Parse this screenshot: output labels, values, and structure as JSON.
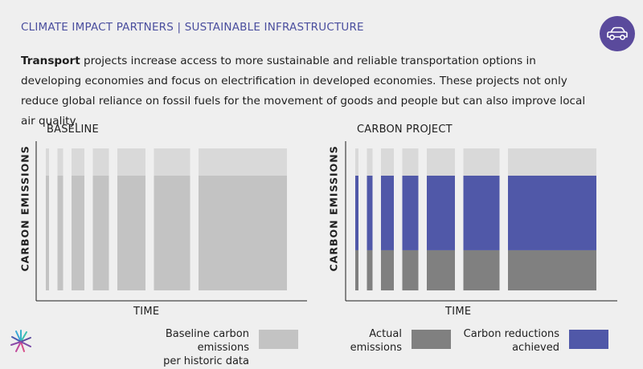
{
  "header": {
    "title": "CLIMATE IMPACT PARTNERS | SUSTAINABLE INFRASTRUCTURE",
    "badge_icon": "car-icon"
  },
  "intro": {
    "lead": "Transport",
    "rest": " projects increase access to more sustainable and reliable transportation options in developing economies and focus on electrification in developed economies. These projects not only reduce global reliance on fossil fuels for the movement of goods and people but can also improve local air quality."
  },
  "colors": {
    "baseline": "#c3c3c3",
    "ceiling": "#d9d9d9",
    "actual": "#808080",
    "reduction": "#5058a8",
    "accent": "#5a4a9c"
  },
  "chart_data": [
    {
      "type": "bar",
      "title": "BASELINE",
      "xlabel": "TIME",
      "ylabel": "CARBON EMISSIONS",
      "series": [
        {
          "name": "Baseline carbon emissions per historic data",
          "values": [
            1,
            1,
            1,
            1,
            1,
            1,
            1
          ]
        }
      ]
    },
    {
      "type": "bar",
      "title": "CARBON PROJECT",
      "xlabel": "TIME",
      "ylabel": "CARBON EMISSIONS",
      "series": [
        {
          "name": "Actual emissions",
          "values": [
            0.35,
            0.35,
            0.35,
            0.35,
            0.35,
            0.35,
            0.35
          ]
        },
        {
          "name": "Carbon reductions achieved",
          "values": [
            0.65,
            0.65,
            0.65,
            0.65,
            0.65,
            0.65,
            0.65
          ]
        }
      ]
    }
  ],
  "legend": {
    "baseline_line1": "Baseline carbon emissions",
    "baseline_line2": "per historic data",
    "actual_line1": "Actual",
    "actual_line2": "emissions",
    "reduction_line1": "Carbon reductions",
    "reduction_line2": "achieved"
  }
}
